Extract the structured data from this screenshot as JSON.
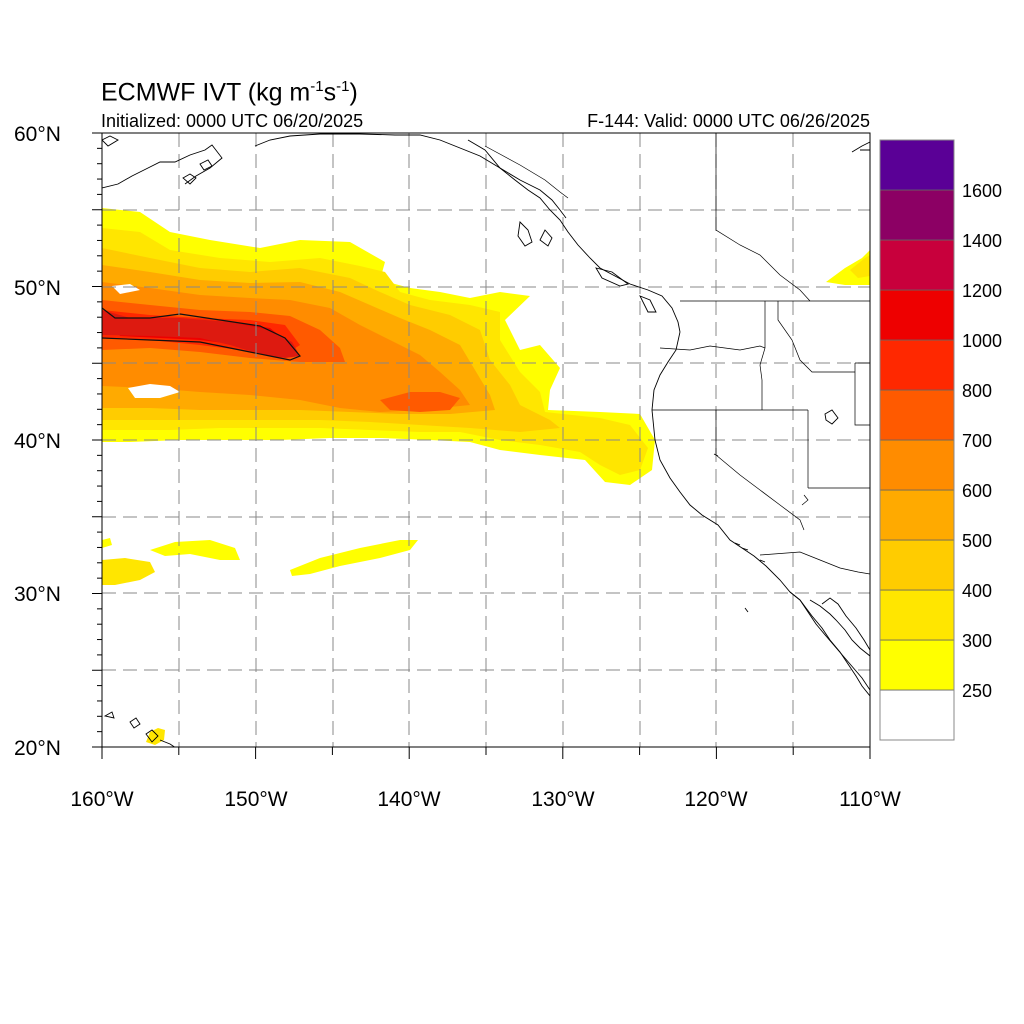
{
  "title": {
    "main_text": "ECMWF IVT (kg m",
    "sup1": "-1",
    "mid_text": "s",
    "sup2": "-1",
    "end_text": ")"
  },
  "init_label": "Initialized: 0000 UTC 06/20/2025",
  "valid_label": "F-144: Valid: 0000 UTC 06/26/2025",
  "map": {
    "lon_range": [
      -160,
      -110
    ],
    "lat_range": [
      20,
      60
    ],
    "grid_lon_step": 5,
    "grid_lat_step": 5,
    "grid": true,
    "x_tick_labels": [
      "160°W",
      "150°W",
      "140°W",
      "130°W",
      "120°W",
      "110°W"
    ],
    "y_tick_labels": [
      "60°N",
      "50°N",
      "40°N",
      "30°N",
      "20°N"
    ]
  },
  "colorbar": {
    "levels": [
      "250",
      "300",
      "400",
      "500",
      "600",
      "700",
      "800",
      "1000",
      "1200",
      "1400",
      "1600"
    ],
    "colors": [
      "#ffffff",
      "#ffff00",
      "#ffe600",
      "#ffcc00",
      "#ffaa00",
      "#ff8c00",
      "#ff5a00",
      "#ff2800",
      "#ee0000",
      "#c8003c",
      "#8c0064",
      "#5a0096"
    ]
  }
}
